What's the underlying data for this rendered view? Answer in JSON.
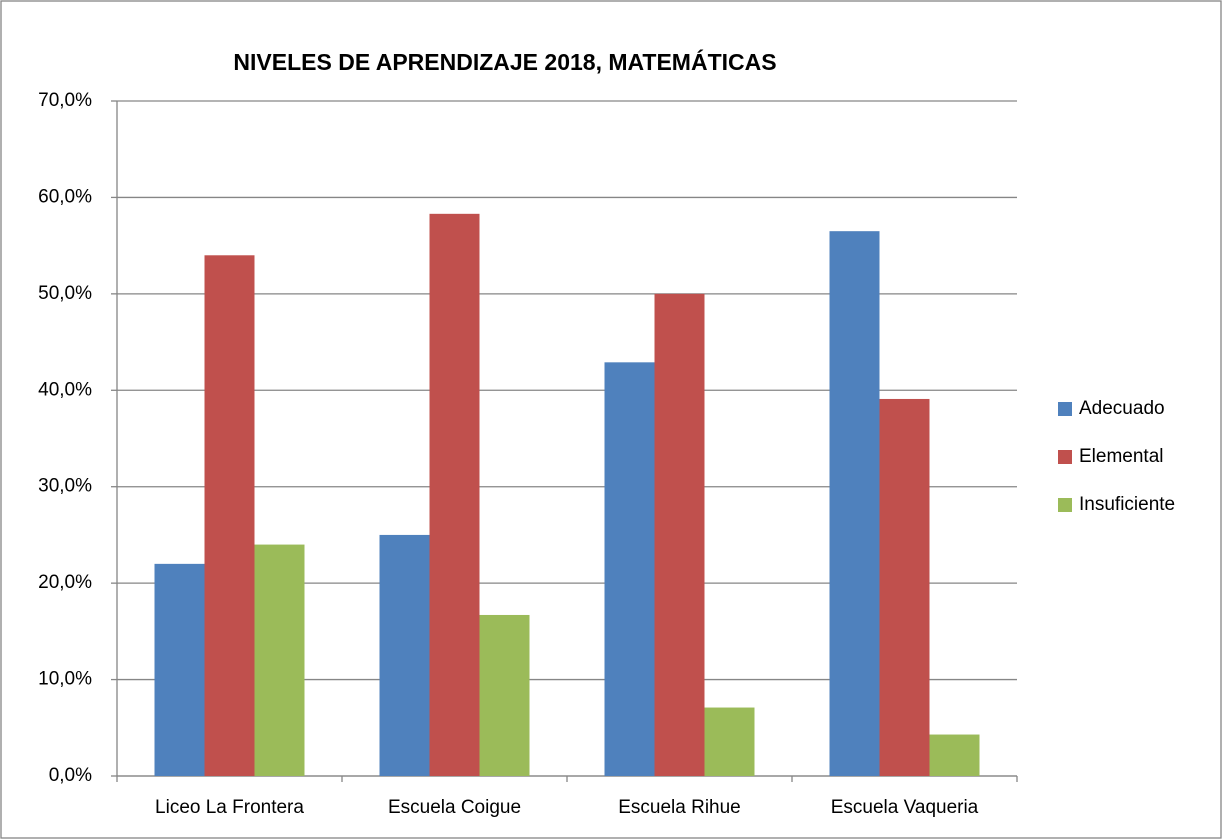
{
  "chart_data": {
    "type": "bar",
    "title": "NIVELES DE APRENDIZAJE 2018, MATEMÁTICAS",
    "categories": [
      "Liceo La Frontera",
      "Escuela Coigue",
      "Escuela Rihue",
      "Escuela Vaqueria"
    ],
    "series": [
      {
        "name": "Adecuado",
        "color": "#4f81bd",
        "values": [
          22,
          25,
          42.9,
          56.5
        ]
      },
      {
        "name": "Elemental",
        "color": "#c0504d",
        "values": [
          54,
          58.3,
          50,
          39.1
        ]
      },
      {
        "name": "Insuficiente",
        "color": "#9bbb59",
        "values": [
          24,
          16.7,
          7.1,
          4.3
        ]
      }
    ],
    "ylim": [
      0,
      70
    ],
    "yticks": [
      {
        "value": 0,
        "label": "0,0%"
      },
      {
        "value": 10,
        "label": "10,0%"
      },
      {
        "value": 20,
        "label": "20,0%"
      },
      {
        "value": 30,
        "label": "30,0%"
      },
      {
        "value": 40,
        "label": "40,0%"
      },
      {
        "value": 50,
        "label": "50,0%"
      },
      {
        "value": 60,
        "label": "60,0%"
      },
      {
        "value": 70,
        "label": "70,0%"
      }
    ],
    "grid": true,
    "legend": "right"
  }
}
